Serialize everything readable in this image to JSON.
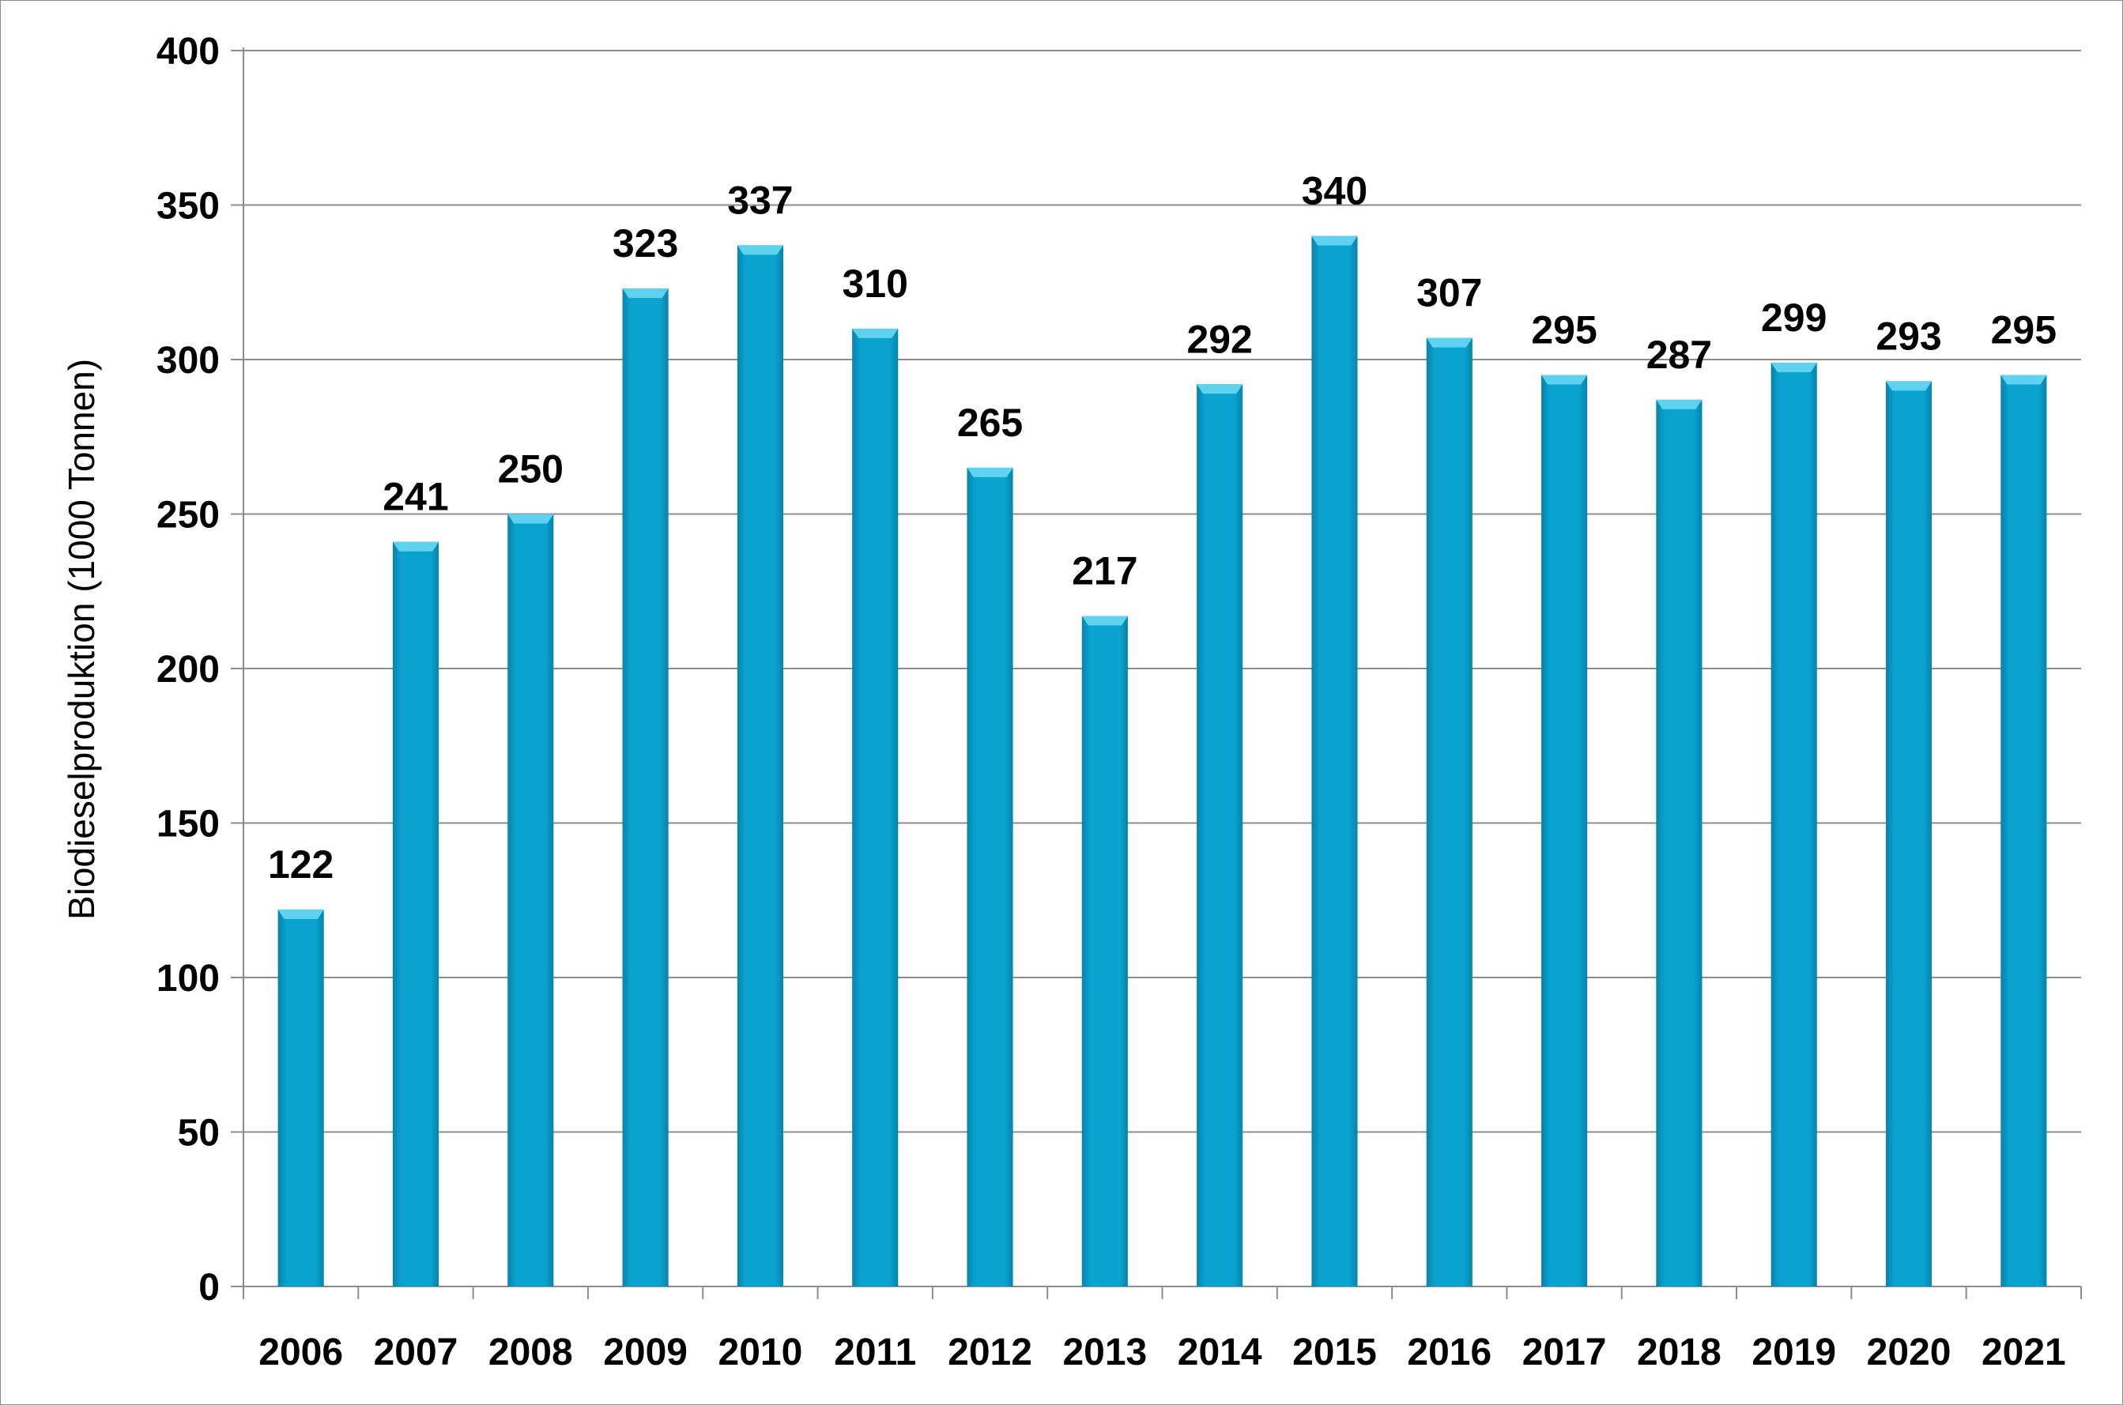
{
  "chart_data": {
    "type": "bar",
    "title": "",
    "xlabel": "",
    "ylabel": "Biodieselproduktion (1000 Tonnen)",
    "ylim": [
      0,
      400
    ],
    "yticks": [
      0,
      50,
      100,
      150,
      200,
      250,
      300,
      350,
      400
    ],
    "grid": true,
    "categories": [
      "2006",
      "2007",
      "2008",
      "2009",
      "2010",
      "2011",
      "2012",
      "2013",
      "2014",
      "2015",
      "2016",
      "2017",
      "2018",
      "2019",
      "2020",
      "2021"
    ],
    "values": [
      122,
      241,
      250,
      323,
      337,
      310,
      265,
      217,
      292,
      340,
      307,
      295,
      287,
      299,
      293,
      295
    ],
    "colors": {
      "bar": "#0aa2cf",
      "bar_dark": "#0784aa",
      "bar_top": "#5fd2f0",
      "grid": "#8c8c8c",
      "axis": "#8c8c8c"
    }
  }
}
